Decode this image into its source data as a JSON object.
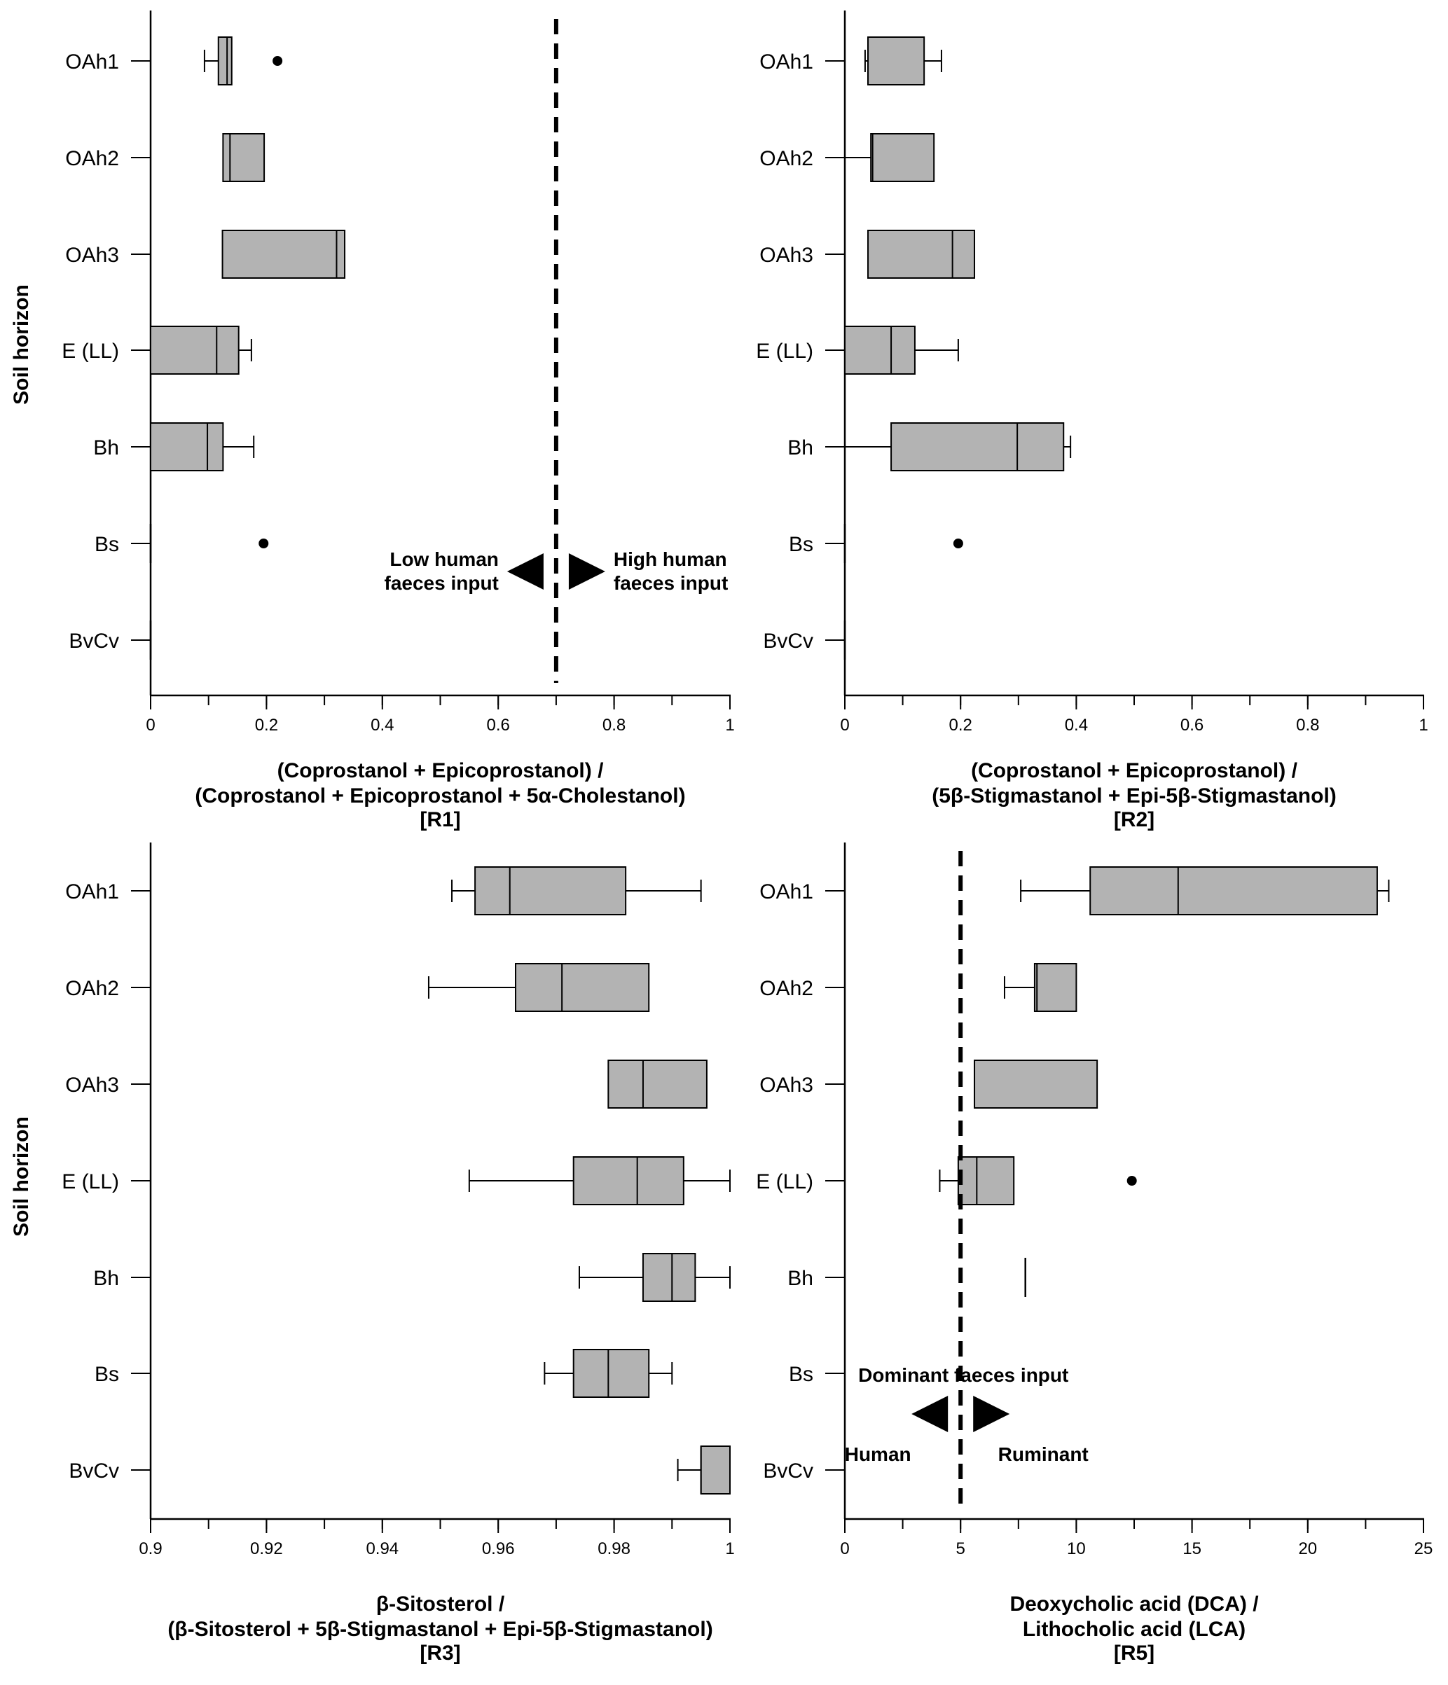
{
  "y_axis_label": "Soil horizon",
  "chart_data": [
    {
      "type": "box",
      "panel": "R1",
      "xlabel_lines": [
        "(Coprostanol + Epicoprostanol) /",
        "(Coprostanol + Epicoprostanol + 5α-Cholestanol)",
        "[R1]"
      ],
      "ylabel": "Soil horizon",
      "xlim": [
        0,
        1
      ],
      "xticks": [
        0,
        0.2,
        0.4,
        0.6,
        0.8,
        1
      ],
      "xticklabels": [
        "0",
        "0.2",
        "0.4",
        "0.6",
        "0.8",
        "1"
      ],
      "minor_step": 0.1,
      "categories": [
        "OAh1",
        "OAh2",
        "OAh3",
        "E (LL)",
        "Bh",
        "Bs",
        "BvCv"
      ],
      "boxes": [
        {
          "min": 0.093,
          "q1": 0.117,
          "median": 0.132,
          "q3": 0.14,
          "max": 0.14,
          "outliers": [
            0.219
          ]
        },
        {
          "min": 0.125,
          "q1": 0.125,
          "median": 0.137,
          "q3": 0.196,
          "max": 0.196,
          "outliers": []
        },
        {
          "min": 0.124,
          "q1": 0.124,
          "median": 0.321,
          "q3": 0.335,
          "max": 0.335,
          "outliers": []
        },
        {
          "min": 0.0,
          "q1": 0.0,
          "median": 0.114,
          "q3": 0.152,
          "max": 0.174,
          "outliers": []
        },
        {
          "min": 0.0,
          "q1": 0.0,
          "median": 0.098,
          "q3": 0.125,
          "max": 0.178,
          "outliers": []
        },
        {
          "min": 0.0,
          "q1": 0.0,
          "median": 0.0,
          "q3": 0.0,
          "max": 0.0,
          "outliers": [
            0.195
          ]
        },
        {
          "min": 0.0,
          "q1": 0.0,
          "median": 0.0,
          "q3": 0.0,
          "max": 0.0,
          "outliers": []
        }
      ],
      "threshold": 0.7,
      "annotation": {
        "left_lines": [
          "Low human",
          "faeces input"
        ],
        "right_lines": [
          "High human",
          "faeces input"
        ]
      }
    },
    {
      "type": "box",
      "panel": "R2",
      "xlabel_lines": [
        "(Coprostanol + Epicoprostanol) /",
        "(5β-Stigmastanol + Epi-5β-Stigmastanol)",
        "[R2]"
      ],
      "ylabel": "",
      "xlim": [
        0,
        1
      ],
      "xticks": [
        0,
        0.2,
        0.4,
        0.6,
        0.8,
        1
      ],
      "xticklabels": [
        "0",
        "0.2",
        "0.4",
        "0.6",
        "0.8",
        "1"
      ],
      "minor_step": 0.1,
      "categories": [
        "OAh1",
        "OAh2",
        "OAh3",
        "E (LL)",
        "Bh",
        "Bs",
        "BvCv"
      ],
      "boxes": [
        {
          "min": 0.035,
          "q1": 0.04,
          "median": 0.04,
          "q3": 0.137,
          "max": 0.167,
          "outliers": []
        },
        {
          "min": 0.0,
          "q1": 0.045,
          "median": 0.048,
          "q3": 0.154,
          "max": 0.154,
          "outliers": []
        },
        {
          "min": 0.04,
          "q1": 0.04,
          "median": 0.186,
          "q3": 0.224,
          "max": 0.224,
          "outliers": []
        },
        {
          "min": 0.0,
          "q1": 0.0,
          "median": 0.08,
          "q3": 0.121,
          "max": 0.196,
          "outliers": []
        },
        {
          "min": 0.0,
          "q1": 0.08,
          "median": 0.298,
          "q3": 0.378,
          "max": 0.39,
          "outliers": []
        },
        {
          "min": 0.0,
          "q1": 0.0,
          "median": 0.0,
          "q3": 0.0,
          "max": 0.0,
          "outliers": [
            0.196
          ]
        },
        {
          "min": 0.0,
          "q1": 0.0,
          "median": 0.0,
          "q3": 0.0,
          "max": 0.0,
          "outliers": []
        }
      ]
    },
    {
      "type": "box",
      "panel": "R3",
      "xlabel_lines": [
        "β-Sitosterol /",
        "(β-Sitosterol + 5β-Stigmastanol + Epi-5β-Stigmastanol)",
        "[R3]"
      ],
      "ylabel": "Soil horizon",
      "xlim": [
        0.9,
        1
      ],
      "xticks": [
        0.9,
        0.92,
        0.94,
        0.96,
        0.98,
        1
      ],
      "xticklabels": [
        "0.9",
        "0.92",
        "0.94",
        "0.96",
        "0.98",
        "1"
      ],
      "minor_step": 0.01,
      "categories": [
        "OAh1",
        "OAh2",
        "OAh3",
        "E (LL)",
        "Bh",
        "Bs",
        "BvCv"
      ],
      "boxes": [
        {
          "min": 0.952,
          "q1": 0.956,
          "median": 0.962,
          "q3": 0.982,
          "max": 0.995,
          "outliers": []
        },
        {
          "min": 0.948,
          "q1": 0.963,
          "median": 0.971,
          "q3": 0.986,
          "max": 0.986,
          "outliers": []
        },
        {
          "min": 0.979,
          "q1": 0.979,
          "median": 0.985,
          "q3": 0.996,
          "max": 0.996,
          "outliers": []
        },
        {
          "min": 0.955,
          "q1": 0.973,
          "median": 0.984,
          "q3": 0.992,
          "max": 1.0,
          "outliers": []
        },
        {
          "min": 0.974,
          "q1": 0.985,
          "median": 0.99,
          "q3": 0.994,
          "max": 1.0,
          "outliers": []
        },
        {
          "min": 0.968,
          "q1": 0.973,
          "median": 0.979,
          "q3": 0.986,
          "max": 0.99,
          "outliers": []
        },
        {
          "min": 0.991,
          "q1": 0.995,
          "median": 0.995,
          "q3": 1.0,
          "max": 1.0,
          "outliers": []
        }
      ]
    },
    {
      "type": "box",
      "panel": "R5",
      "xlabel_lines": [
        "Deoxycholic acid (DCA) /",
        "Lithocholic acid (LCA)",
        "[R5]"
      ],
      "ylabel": "",
      "xlim": [
        0,
        25
      ],
      "xticks": [
        0,
        5,
        10,
        15,
        20,
        25
      ],
      "xticklabels": [
        "0",
        "5",
        "10",
        "15",
        "20",
        "25"
      ],
      "minor_step": 2.5,
      "categories": [
        "OAh1",
        "OAh2",
        "OAh3",
        "E (LL)",
        "Bh",
        "Bs",
        "BvCv"
      ],
      "boxes": [
        {
          "min": 7.6,
          "q1": 10.6,
          "median": 14.4,
          "q3": 23.0,
          "max": 23.5,
          "outliers": []
        },
        {
          "min": 6.9,
          "q1": 8.2,
          "median": 8.3,
          "q3": 10.0,
          "max": 10.0,
          "outliers": []
        },
        {
          "min": 5.6,
          "q1": 5.6,
          "median": 5.6,
          "q3": 10.9,
          "max": 10.9,
          "outliers": []
        },
        {
          "min": 4.1,
          "q1": 4.9,
          "median": 5.7,
          "q3": 7.3,
          "max": 7.3,
          "outliers": [
            12.4
          ]
        },
        {
          "min": 7.8,
          "q1": 7.8,
          "median": 7.8,
          "q3": 7.8,
          "max": 7.8,
          "outliers": []
        },
        null,
        null
      ],
      "threshold": 5,
      "annotation": {
        "top_text": "Dominant faeces input",
        "left_text": "Human",
        "right_text": "Ruminant"
      }
    }
  ]
}
